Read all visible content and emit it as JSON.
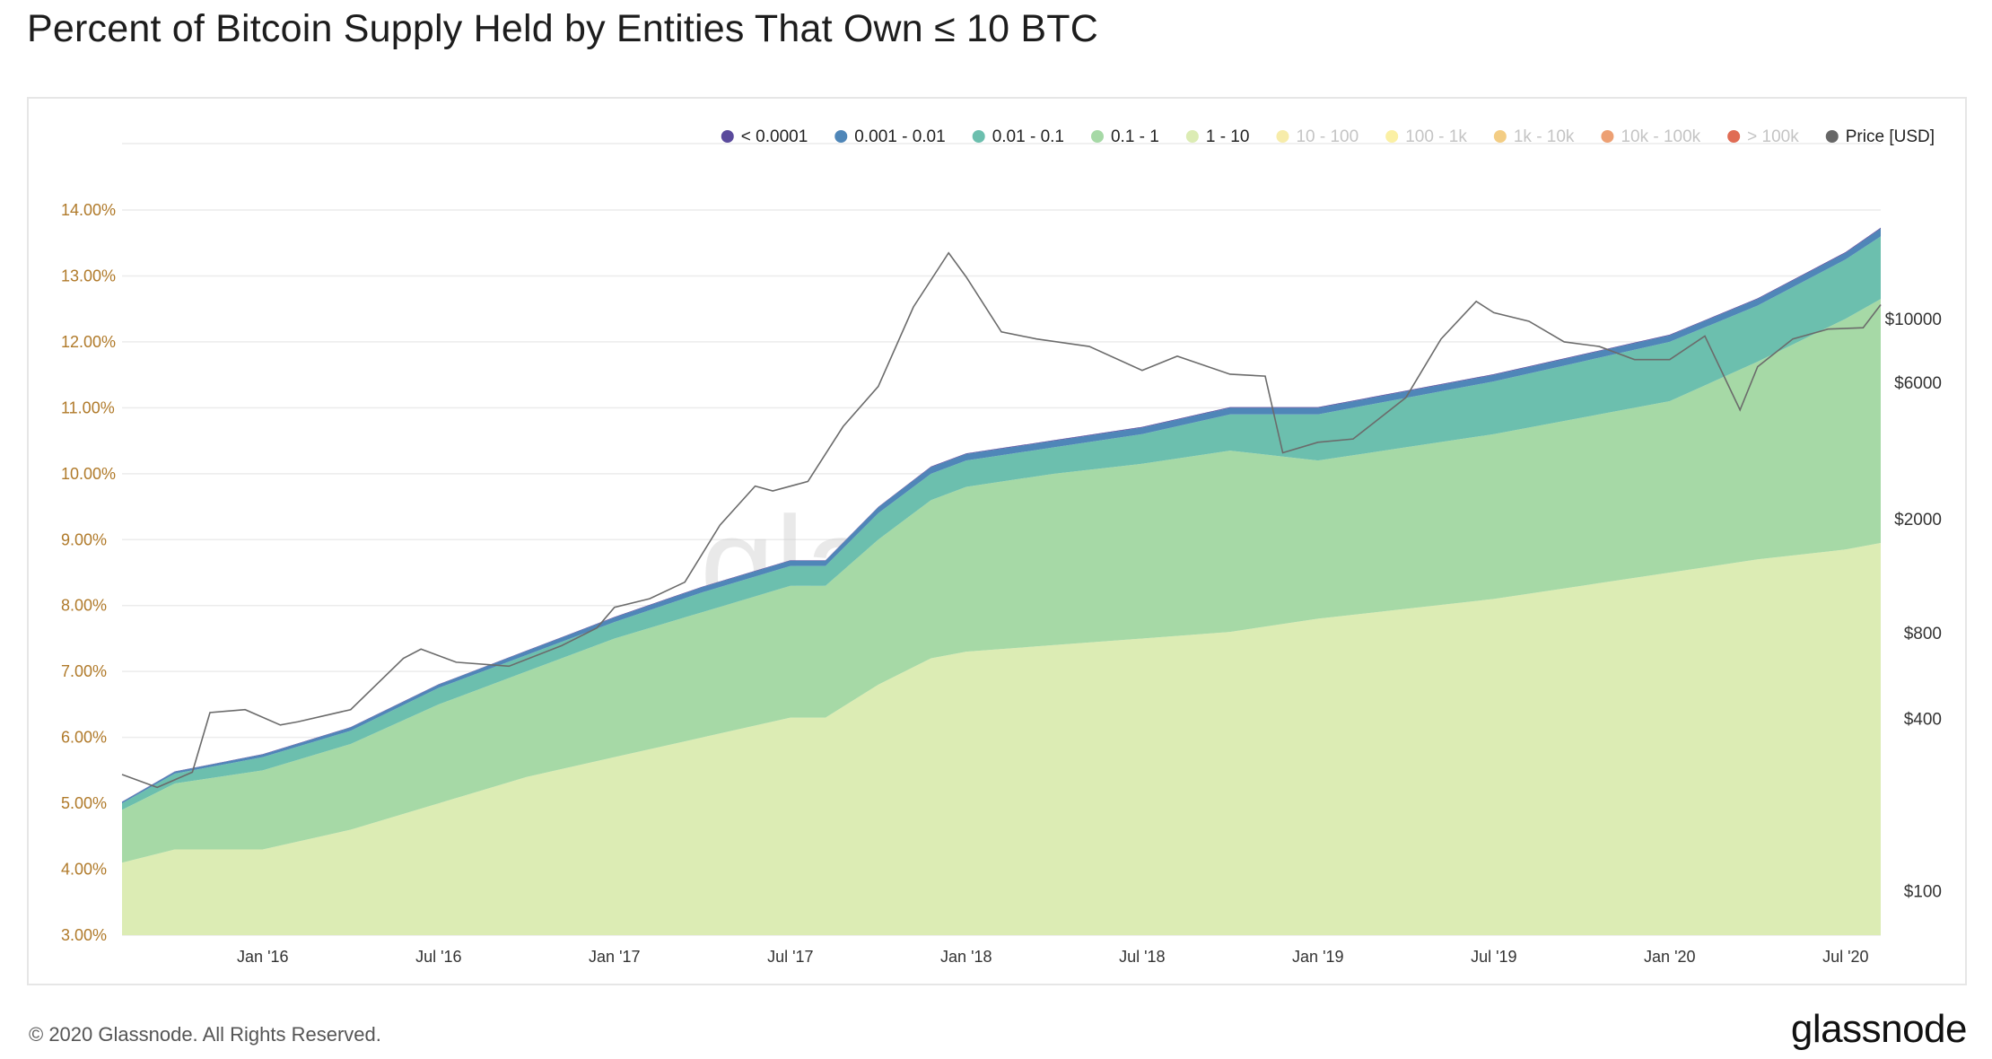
{
  "title": "Percent of Bitcoin Supply Held by Entities That Own ≤ 10 BTC",
  "footer": {
    "copyright": "© 2020 Glassnode. All Rights Reserved.",
    "logo": "glassnode"
  },
  "chart_data": {
    "type": "area",
    "stacked": true,
    "watermark": "glassnode",
    "legend_position": "top-right",
    "grid": true,
    "legend": [
      {
        "name": "< 0.0001",
        "color": "#5a4a9c",
        "active": true
      },
      {
        "name": "0.001 - 0.01",
        "color": "#4f86b8",
        "active": true
      },
      {
        "name": "0.01 - 0.1",
        "color": "#6cbfae",
        "active": true
      },
      {
        "name": "0.1 - 1",
        "color": "#a6d9a6",
        "active": true
      },
      {
        "name": "1 - 10",
        "color": "#dcecb4",
        "active": true
      },
      {
        "name": "10 - 100",
        "color": "#f7ecaa",
        "active": false
      },
      {
        "name": "100 - 1k",
        "color": "#fbf0a4",
        "active": false
      },
      {
        "name": "1k - 10k",
        "color": "#f3cd84",
        "active": false
      },
      {
        "name": "10k - 100k",
        "color": "#eda073",
        "active": false
      },
      {
        "name": "> 100k",
        "color": "#e06c54",
        "active": false
      },
      {
        "name": "Price [USD]",
        "color": "#666666",
        "active": true
      }
    ],
    "x_ticks": [
      "Jan '16",
      "Jul '16",
      "Jan '17",
      "Jul '17",
      "Jan '18",
      "Jul '18",
      "Jan '19",
      "Jul '19",
      "Jan '20",
      "Jul '20"
    ],
    "x_tick_values": [
      2016.0,
      2016.5,
      2017.0,
      2017.5,
      2018.0,
      2018.5,
      2019.0,
      2019.5,
      2020.0,
      2020.5
    ],
    "xlim": [
      2015.6,
      2020.6
    ],
    "y_left": {
      "ticks": [
        "3.00%",
        "4.00%",
        "5.00%",
        "6.00%",
        "7.00%",
        "8.00%",
        "9.00%",
        "10.00%",
        "11.00%",
        "12.00%",
        "13.00%",
        "14.00%"
      ],
      "tick_values": [
        3,
        4,
        5,
        6,
        7,
        8,
        9,
        10,
        11,
        12,
        13,
        14
      ],
      "ylim": [
        3,
        14
      ]
    },
    "y_right": {
      "scale": "log",
      "ticks": [
        "$100",
        "$400",
        "$800",
        "$2000",
        "$6000",
        "$10000"
      ],
      "tick_values": [
        100,
        400,
        800,
        2000,
        6000,
        10000
      ]
    },
    "x": [
      2015.6,
      2015.75,
      2016.0,
      2016.25,
      2016.5,
      2016.75,
      2017.0,
      2017.25,
      2017.5,
      2017.6,
      2017.75,
      2017.9,
      2018.0,
      2018.25,
      2018.5,
      2018.75,
      2019.0,
      2019.25,
      2019.5,
      2019.75,
      2020.0,
      2020.25,
      2020.5,
      2020.6
    ],
    "series": [
      {
        "name": "1 - 10",
        "values": [
          4.1,
          4.3,
          4.3,
          4.6,
          5.0,
          5.4,
          5.7,
          6.0,
          6.3,
          6.3,
          6.8,
          7.2,
          7.3,
          7.4,
          7.5,
          7.6,
          7.8,
          7.95,
          8.1,
          8.3,
          8.5,
          8.7,
          8.85,
          8.95
        ]
      },
      {
        "name": "0.1 - 1",
        "values": [
          0.8,
          1.0,
          1.2,
          1.3,
          1.5,
          1.6,
          1.8,
          1.9,
          2.0,
          2.0,
          2.2,
          2.4,
          2.5,
          2.6,
          2.65,
          2.75,
          2.4,
          2.45,
          2.5,
          2.55,
          2.6,
          3.0,
          3.5,
          3.7
        ]
      },
      {
        "name": "0.01 - 0.1",
        "values": [
          0.1,
          0.15,
          0.2,
          0.2,
          0.25,
          0.25,
          0.25,
          0.3,
          0.3,
          0.3,
          0.4,
          0.4,
          0.4,
          0.4,
          0.45,
          0.55,
          0.7,
          0.75,
          0.8,
          0.85,
          0.9,
          0.85,
          0.9,
          0.95
        ]
      },
      {
        "name": "0.001 - 0.01",
        "values": [
          0.02,
          0.03,
          0.04,
          0.05,
          0.05,
          0.06,
          0.07,
          0.08,
          0.08,
          0.08,
          0.09,
          0.1,
          0.1,
          0.1,
          0.1,
          0.1,
          0.1,
          0.1,
          0.1,
          0.1,
          0.1,
          0.1,
          0.1,
          0.12
        ]
      },
      {
        "name": "< 0.0001",
        "values": [
          0.005,
          0.005,
          0.006,
          0.006,
          0.006,
          0.007,
          0.007,
          0.008,
          0.008,
          0.008,
          0.008,
          0.009,
          0.009,
          0.009,
          0.01,
          0.01,
          0.01,
          0.01,
          0.01,
          0.01,
          0.01,
          0.01,
          0.012,
          0.012
        ]
      }
    ],
    "price": {
      "name": "Price [USD]",
      "x": [
        2015.6,
        2015.7,
        2015.8,
        2015.85,
        2015.95,
        2016.05,
        2016.1,
        2016.25,
        2016.4,
        2016.45,
        2016.55,
        2016.7,
        2016.85,
        2016.95,
        2017.0,
        2017.1,
        2017.2,
        2017.3,
        2017.4,
        2017.45,
        2017.55,
        2017.65,
        2017.75,
        2017.85,
        2017.95,
        2018.0,
        2018.1,
        2018.2,
        2018.35,
        2018.5,
        2018.6,
        2018.75,
        2018.85,
        2018.9,
        2019.0,
        2019.1,
        2019.25,
        2019.35,
        2019.45,
        2019.5,
        2019.6,
        2019.7,
        2019.8,
        2019.9,
        2020.0,
        2020.1,
        2020.2,
        2020.25,
        2020.35,
        2020.45,
        2020.55,
        2020.6
      ],
      "values": [
        255,
        230,
        260,
        420,
        430,
        380,
        390,
        430,
        650,
        700,
        630,
        610,
        720,
        830,
        980,
        1050,
        1200,
        1900,
        2600,
        2500,
        2700,
        4200,
        5800,
        11000,
        17000,
        14000,
        9000,
        8500,
        8000,
        6600,
        7400,
        6400,
        6300,
        3400,
        3700,
        3800,
        5300,
        8500,
        11500,
        10500,
        9800,
        8300,
        8000,
        7200,
        7200,
        8700,
        4800,
        6800,
        8500,
        9200,
        9300,
        11200
      ]
    }
  }
}
